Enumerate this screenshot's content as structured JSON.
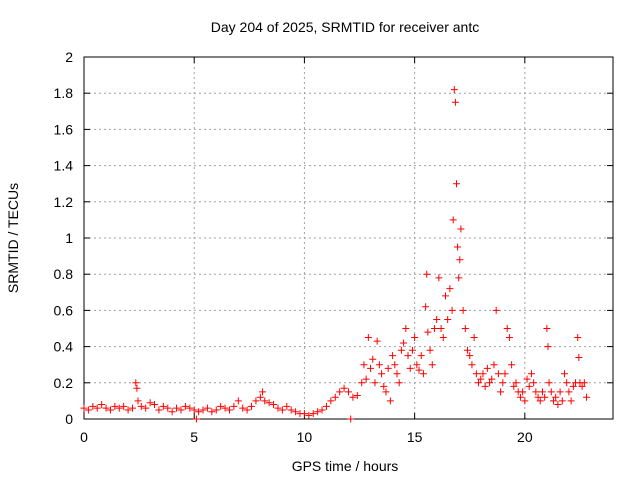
{
  "chart_data": {
    "type": "scatter",
    "title": "Day 204 of 2025, SRMTID for receiver antc",
    "xlabel": "GPS time / hours",
    "ylabel": "SRMTID / TECUs",
    "xlim": [
      0,
      24
    ],
    "ylim": [
      0,
      2
    ],
    "xticks": [
      0,
      5,
      10,
      15,
      20
    ],
    "yticks": [
      0,
      0.2,
      0.4,
      0.6,
      0.8,
      1,
      1.2,
      1.4,
      1.6,
      1.8,
      2
    ],
    "xtick_labels": [
      "0",
      "5",
      "10",
      "15",
      "20"
    ],
    "ytick_labels": [
      "0",
      "0.2",
      "0.4",
      "0.6",
      "0.8",
      "1",
      "1.2",
      "1.4",
      "1.6",
      "1.8",
      "2"
    ],
    "grid": true,
    "marker": "+",
    "color": "#ff0000",
    "series": [
      {
        "name": "SRMTID",
        "x": [
          0.0,
          0.2,
          0.4,
          0.6,
          0.8,
          1.0,
          1.2,
          1.4,
          1.6,
          1.8,
          2.0,
          2.2,
          2.35,
          2.4,
          2.45,
          2.6,
          2.8,
          3.0,
          3.2,
          3.4,
          3.6,
          3.8,
          4.0,
          4.2,
          4.4,
          4.6,
          4.8,
          5.0,
          5.1,
          5.2,
          5.4,
          5.6,
          5.8,
          6.0,
          6.2,
          6.4,
          6.6,
          6.8,
          7.0,
          7.2,
          7.4,
          7.6,
          7.8,
          8.0,
          8.1,
          8.2,
          8.4,
          8.6,
          8.8,
          9.0,
          9.2,
          9.4,
          9.6,
          9.8,
          10.0,
          10.2,
          10.4,
          10.6,
          10.8,
          11.0,
          11.2,
          11.4,
          11.6,
          11.8,
          12.0,
          12.1,
          12.2,
          12.4,
          12.6,
          12.7,
          12.8,
          12.9,
          13.0,
          13.1,
          13.2,
          13.3,
          13.4,
          13.5,
          13.6,
          13.7,
          13.8,
          13.9,
          14.0,
          14.1,
          14.2,
          14.3,
          14.4,
          14.5,
          14.6,
          14.7,
          14.8,
          14.9,
          15.0,
          15.1,
          15.2,
          15.3,
          15.4,
          15.5,
          15.55,
          15.6,
          15.7,
          15.8,
          15.9,
          16.0,
          16.1,
          16.2,
          16.3,
          16.4,
          16.5,
          16.6,
          16.7,
          16.75,
          16.8,
          16.85,
          16.9,
          16.95,
          17.0,
          17.05,
          17.1,
          17.2,
          17.3,
          17.4,
          17.5,
          17.6,
          17.7,
          17.8,
          17.9,
          18.0,
          18.1,
          18.2,
          18.3,
          18.4,
          18.5,
          18.6,
          18.7,
          18.8,
          18.9,
          19.0,
          19.1,
          19.2,
          19.3,
          19.4,
          19.5,
          19.6,
          19.7,
          19.8,
          19.9,
          20.0,
          20.1,
          20.2,
          20.3,
          20.4,
          20.5,
          20.6,
          20.7,
          20.8,
          20.9,
          21.0,
          21.05,
          21.1,
          21.2,
          21.3,
          21.4,
          21.5,
          21.6,
          21.7,
          21.8,
          21.9,
          22.0,
          22.1,
          22.2,
          22.3,
          22.4,
          22.45,
          22.5,
          22.6,
          22.7,
          22.8
        ],
        "y": [
          0.06,
          0.05,
          0.07,
          0.06,
          0.08,
          0.06,
          0.05,
          0.07,
          0.06,
          0.07,
          0.05,
          0.06,
          0.2,
          0.17,
          0.1,
          0.07,
          0.06,
          0.09,
          0.08,
          0.05,
          0.07,
          0.06,
          0.04,
          0.06,
          0.05,
          0.07,
          0.06,
          0.05,
          0.0,
          0.04,
          0.05,
          0.06,
          0.04,
          0.05,
          0.07,
          0.06,
          0.05,
          0.07,
          0.1,
          0.06,
          0.05,
          0.07,
          0.1,
          0.12,
          0.15,
          0.1,
          0.09,
          0.08,
          0.06,
          0.05,
          0.07,
          0.05,
          0.04,
          0.03,
          0.03,
          0.02,
          0.03,
          0.04,
          0.05,
          0.07,
          0.1,
          0.12,
          0.15,
          0.17,
          0.15,
          0.0,
          0.12,
          0.13,
          0.2,
          0.3,
          0.22,
          0.45,
          0.28,
          0.33,
          0.2,
          0.43,
          0.3,
          0.25,
          0.18,
          0.15,
          0.28,
          0.1,
          0.35,
          0.3,
          0.25,
          0.2,
          0.38,
          0.42,
          0.5,
          0.35,
          0.28,
          0.38,
          0.45,
          0.3,
          0.27,
          0.35,
          0.25,
          0.62,
          0.8,
          0.48,
          0.38,
          0.3,
          0.5,
          0.55,
          0.78,
          0.5,
          0.45,
          0.68,
          0.55,
          0.72,
          0.6,
          1.1,
          1.82,
          1.75,
          1.3,
          0.95,
          0.78,
          0.88,
          1.05,
          0.6,
          0.5,
          0.38,
          0.35,
          0.3,
          0.45,
          0.25,
          0.2,
          0.22,
          0.25,
          0.18,
          0.28,
          0.2,
          0.22,
          0.3,
          0.6,
          0.25,
          0.15,
          0.2,
          0.25,
          0.5,
          0.45,
          0.3,
          0.18,
          0.2,
          0.15,
          0.12,
          0.15,
          0.1,
          0.22,
          0.18,
          0.25,
          0.2,
          0.15,
          0.12,
          0.1,
          0.15,
          0.12,
          0.5,
          0.4,
          0.2,
          0.15,
          0.1,
          0.12,
          0.08,
          0.15,
          0.1,
          0.25,
          0.2,
          0.15,
          0.1,
          0.18,
          0.2,
          0.45,
          0.34,
          0.2,
          0.18,
          0.2,
          0.12
        ]
      }
    ]
  }
}
